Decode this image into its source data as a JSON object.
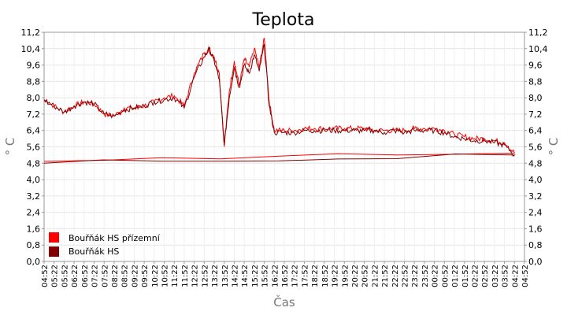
{
  "chart_data": {
    "type": "line",
    "title": "Teplota",
    "xlabel": "Čas",
    "ylabel": "° C",
    "ylabel_right": "° C",
    "ylim": [
      0,
      11.2
    ],
    "yticks": [
      "0,0",
      "0,8",
      "1,6",
      "2,4",
      "3,2",
      "4,0",
      "4,8",
      "5,6",
      "6,4",
      "7,2",
      "8,0",
      "8,8",
      "9,6",
      "10,4",
      "11,2"
    ],
    "xticks": [
      "04:52",
      "05:22",
      "05:52",
      "06:22",
      "06:52",
      "07:22",
      "07:52",
      "08:22",
      "08:52",
      "09:22",
      "09:52",
      "10:22",
      "10:52",
      "11:22",
      "11:52",
      "12:22",
      "12:52",
      "13:22",
      "13:52",
      "14:22",
      "14:52",
      "15:22",
      "15:52",
      "16:22",
      "16:52",
      "17:22",
      "17:52",
      "18:22",
      "18:52",
      "19:22",
      "19:52",
      "20:22",
      "20:52",
      "21:22",
      "21:52",
      "22:22",
      "22:52",
      "23:22",
      "23:52",
      "00:22",
      "00:52",
      "01:22",
      "01:52",
      "02:22",
      "02:52",
      "03:22",
      "03:52",
      "04:22",
      "04:52"
    ],
    "grid": true,
    "legend": "bottom-left",
    "series": [
      {
        "name": "Bouřňák HS přízemní",
        "color": "#ff0000",
        "x": [
          "04:52",
          "05:22",
          "05:52",
          "06:22",
          "06:52",
          "07:22",
          "07:52",
          "08:22",
          "08:52",
          "09:22",
          "09:52",
          "10:22",
          "10:52",
          "11:22",
          "11:52",
          "12:22",
          "12:52",
          "13:07",
          "13:22",
          "13:37",
          "13:52",
          "14:07",
          "14:22",
          "14:37",
          "14:52",
          "15:07",
          "15:22",
          "15:37",
          "15:52",
          "16:07",
          "16:22",
          "16:52",
          "17:22",
          "17:52",
          "18:22",
          "18:52",
          "19:22",
          "19:52",
          "20:22",
          "20:52",
          "21:22",
          "21:52",
          "22:22",
          "22:52",
          "23:22",
          "23:52",
          "00:22",
          "00:52",
          "01:22",
          "01:52",
          "02:22",
          "02:52",
          "03:22",
          "03:52",
          "04:22",
          "04:52"
        ],
        "values": [
          7.9,
          7.6,
          7.3,
          7.6,
          7.8,
          7.7,
          7.2,
          7.1,
          7.5,
          7.5,
          7.6,
          7.8,
          8.0,
          8.1,
          7.6,
          9.2,
          10.2,
          10.3,
          10.0,
          9.2,
          5.6,
          8.3,
          9.8,
          8.6,
          9.9,
          9.5,
          10.4,
          9.5,
          10.9,
          7.8,
          6.4,
          6.4,
          6.4,
          6.5,
          6.5,
          6.5,
          6.5,
          6.5,
          6.5,
          6.5,
          6.4,
          6.4,
          6.4,
          6.4,
          6.5,
          6.5,
          6.5,
          6.4,
          6.2,
          6.1,
          6.0,
          6.0,
          5.9,
          5.8,
          5.3,
          4.9
        ]
      },
      {
        "name": "Bouřňák HS",
        "color": "#800000",
        "x": [
          "04:52",
          "05:22",
          "05:52",
          "06:22",
          "06:52",
          "07:22",
          "07:52",
          "08:22",
          "08:52",
          "09:22",
          "09:52",
          "10:22",
          "10:52",
          "11:22",
          "11:52",
          "12:22",
          "12:52",
          "13:07",
          "13:22",
          "13:37",
          "13:52",
          "14:07",
          "14:22",
          "14:37",
          "14:52",
          "15:07",
          "15:22",
          "15:37",
          "15:52",
          "16:07",
          "16:22",
          "16:52",
          "17:22",
          "17:52",
          "18:22",
          "18:52",
          "19:22",
          "19:52",
          "20:22",
          "20:52",
          "21:22",
          "21:52",
          "22:22",
          "22:52",
          "23:22",
          "23:52",
          "00:22",
          "00:52",
          "01:22",
          "01:52",
          "02:22",
          "02:52",
          "03:22",
          "03:52",
          "04:22",
          "04:52"
        ],
        "values": [
          7.9,
          7.6,
          7.3,
          7.6,
          7.8,
          7.7,
          7.2,
          7.1,
          7.4,
          7.5,
          7.6,
          7.8,
          7.9,
          8.0,
          7.5,
          9.0,
          10.0,
          10.4,
          9.8,
          8.9,
          5.7,
          8.0,
          9.5,
          8.5,
          9.6,
          9.2,
          10.1,
          9.3,
          10.6,
          7.6,
          6.3,
          6.3,
          6.3,
          6.4,
          6.4,
          6.4,
          6.4,
          6.4,
          6.4,
          6.4,
          6.4,
          6.3,
          6.4,
          6.3,
          6.4,
          6.4,
          6.4,
          6.3,
          6.1,
          6.0,
          5.9,
          5.9,
          5.8,
          5.7,
          5.2,
          4.8
        ]
      }
    ]
  }
}
